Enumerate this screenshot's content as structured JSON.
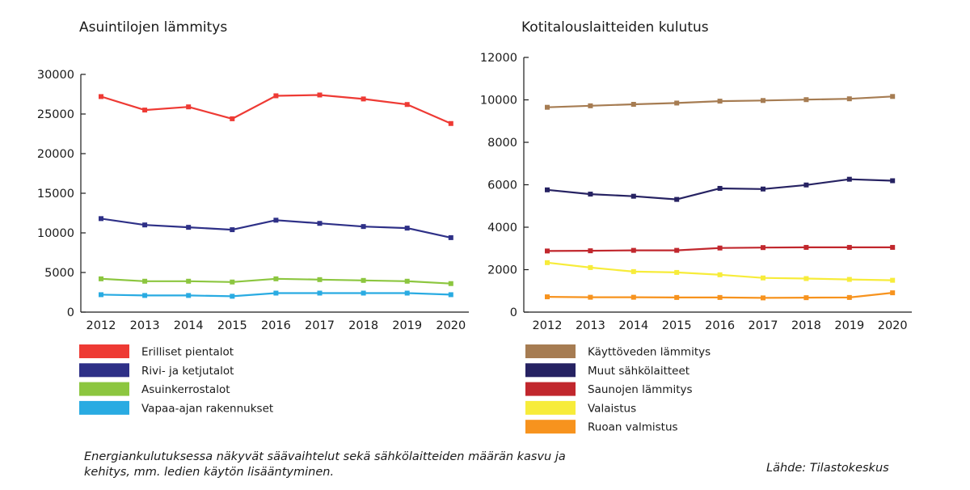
{
  "chart_data": [
    {
      "type": "line",
      "title": "Asuintilojen lämmitys",
      "x": [
        "2012",
        "2013",
        "2014",
        "2015",
        "2016",
        "2017",
        "2018",
        "2019",
        "2020"
      ],
      "ylim": [
        0,
        30000
      ],
      "yticks": [
        0,
        5000,
        10000,
        15000,
        20000,
        25000,
        30000
      ],
      "grid": false,
      "legend": "bottom",
      "series": [
        {
          "name": "Erilliset pientalot",
          "color": "#ee3a34",
          "values": [
            27200,
            25500,
            25900,
            24400,
            27300,
            27400,
            26900,
            26200,
            23800
          ]
        },
        {
          "name": "Rivi- ja ketjutalot",
          "color": "#2e3087",
          "values": [
            11800,
            11000,
            10700,
            10400,
            11600,
            11200,
            10800,
            10600,
            9400
          ]
        },
        {
          "name": "Asuinkerrostalot",
          "color": "#8cc63f",
          "values": [
            4200,
            3900,
            3900,
            3800,
            4200,
            4100,
            4000,
            3900,
            3600
          ]
        },
        {
          "name": "Vapaa-ajan rakennukset",
          "color": "#29abe2",
          "values": [
            2200,
            2100,
            2100,
            2000,
            2400,
            2400,
            2400,
            2400,
            2200
          ]
        }
      ]
    },
    {
      "type": "line",
      "title": "Kotitalouslaitteiden kulutus",
      "x": [
        "2012",
        "2013",
        "2014",
        "2015",
        "2016",
        "2017",
        "2018",
        "2019",
        "2020"
      ],
      "ylim": [
        0,
        12000
      ],
      "yticks": [
        0,
        2000,
        4000,
        6000,
        8000,
        10000,
        12000
      ],
      "grid": false,
      "legend": "bottom",
      "series": [
        {
          "name": "Käyttöveden lämmitys",
          "color": "#a67c52",
          "values": [
            9650,
            9720,
            9790,
            9850,
            9940,
            9970,
            10010,
            10050,
            10160
          ]
        },
        {
          "name": "Muut sähkölaitteet",
          "color": "#262262",
          "values": [
            5760,
            5560,
            5460,
            5310,
            5830,
            5800,
            5990,
            6260,
            6190
          ]
        },
        {
          "name": "Saunojen lämmitys",
          "color": "#c1272d",
          "values": [
            2880,
            2890,
            2910,
            2910,
            3020,
            3040,
            3050,
            3050,
            3050
          ]
        },
        {
          "name": "Valaistus",
          "color": "#f7ec3a",
          "values": [
            2330,
            2100,
            1910,
            1870,
            1760,
            1610,
            1580,
            1540,
            1500
          ]
        },
        {
          "name": "Ruoan valmistus",
          "color": "#f7931e",
          "values": [
            720,
            700,
            700,
            690,
            690,
            670,
            680,
            690,
            910
          ]
        }
      ]
    }
  ],
  "footnote": "Energiankulutuksessa näkyvät säävaihtelut sekä sähkölaitteiden määrän kasvu ja kehitys, mm. ledien käytön lisääntyminen.",
  "source": "Lähde: Tilastokeskus"
}
